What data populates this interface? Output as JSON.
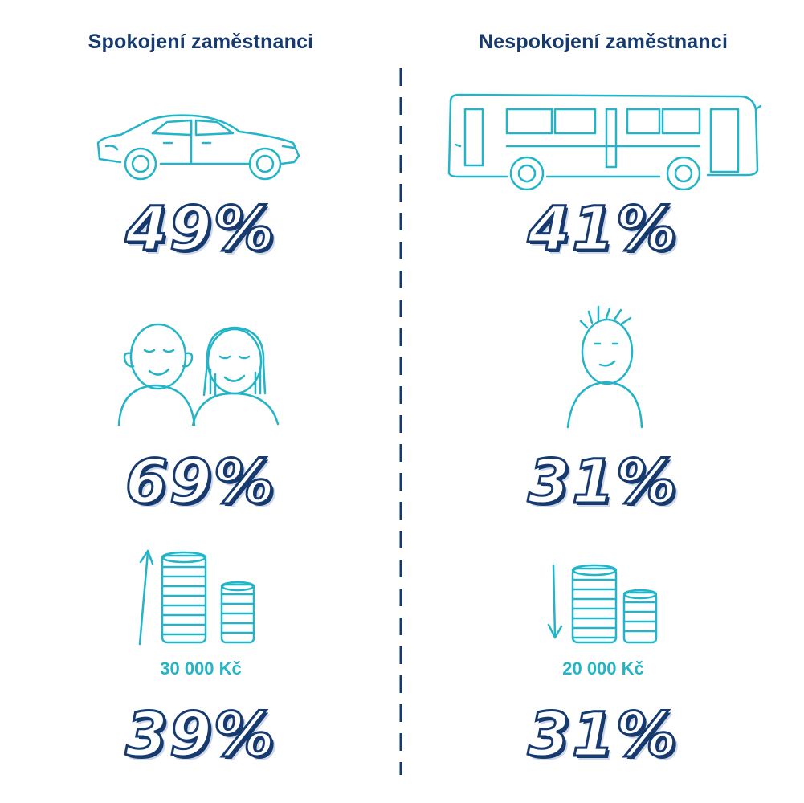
{
  "left": {
    "heading": "Spokojení zaměstnanci",
    "car_pct": "49%",
    "people_pct": "69%",
    "salary_amount": "30 000 Kč",
    "salary_pct": "39%"
  },
  "right": {
    "heading": "Nespokojení zaměstnanci",
    "bus_pct": "41%",
    "person_pct": "31%",
    "salary_amount": "20 000 Kč",
    "salary_pct": "31%"
  },
  "colors": {
    "navy": "#163a6e",
    "teal": "#23b4c8"
  },
  "icons": [
    "car-icon",
    "bus-icon",
    "couple-icon",
    "person-icon",
    "coins-up-icon",
    "coins-down-icon"
  ]
}
